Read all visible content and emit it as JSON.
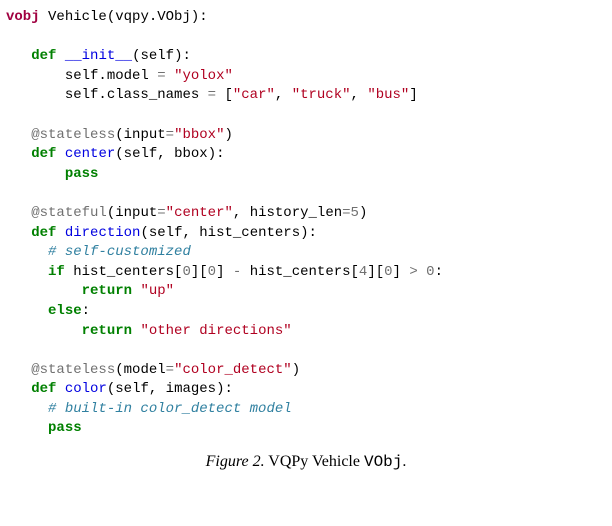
{
  "colors": {
    "keyword": "#008000",
    "vobj_keyword": "#a00040",
    "identifier": "#0000e0",
    "decorator": "#707070",
    "string": "#b00020",
    "comment": "#3080a0",
    "number": "#707070",
    "operator": "#707070",
    "background": "#ffffff",
    "text": "#000000"
  },
  "typography": {
    "code_font": "Courier New",
    "code_fontsize_pt": 11,
    "caption_font": "Times New Roman",
    "caption_fontsize_pt": 12
  },
  "code": {
    "class_decl": {
      "keyword": "vobj",
      "name": "Vehicle",
      "base": "vqpy.VObj"
    },
    "init": {
      "def_kw": "def",
      "name": "__init__",
      "params": "self",
      "model_attr": "model",
      "model_value": "\"yolox\"",
      "classnames_attr": "class_names",
      "classnames_value_open": "[",
      "classnames_values": [
        "\"car\"",
        "\"truck\"",
        "\"bus\""
      ],
      "classnames_value_close": "]",
      "self": "self"
    },
    "center": {
      "decorator": "@stateless",
      "dec_arg_name": "input",
      "dec_arg_value": "\"bbox\"",
      "def_kw": "def",
      "name": "center",
      "params": "self, bbox",
      "body": "pass"
    },
    "direction": {
      "decorator": "@stateful",
      "dec_arg1_name": "input",
      "dec_arg1_value": "\"center\"",
      "dec_arg2_name": "history_len",
      "dec_arg2_value": "5",
      "def_kw": "def",
      "name": "direction",
      "params": "self, hist_centers",
      "comment": "# self-customized",
      "if_kw": "if",
      "cond_lhs": "hist_centers[",
      "idx0": "0",
      "idx0b": "0",
      "cond_minus": "-",
      "idx4": "4",
      "idx4b": "0",
      "cond_gt": ">",
      "zero": "0",
      "return_kw": "return",
      "ret_up": "\"up\"",
      "else_kw": "else",
      "ret_other": "\"other directions\""
    },
    "color_fn": {
      "decorator": "@stateless",
      "dec_arg_name": "model",
      "dec_arg_value": "\"color_detect\"",
      "def_kw": "def",
      "name": "color",
      "params": "self, images",
      "comment": "# built-in color_detect model",
      "body": "pass"
    }
  },
  "caption": {
    "label": "Figure 2.",
    "text_before": " VQPy Vehicle ",
    "objname": "VObj",
    "period": "."
  }
}
